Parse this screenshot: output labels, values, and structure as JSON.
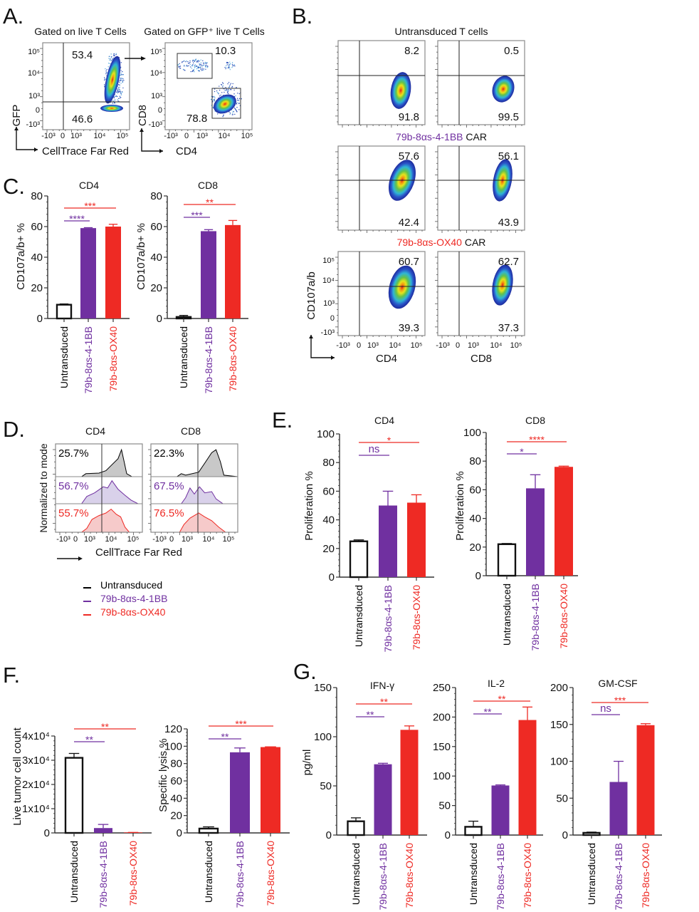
{
  "colors": {
    "untransduced": "#000000",
    "car_41bb": "#7030A0",
    "car_ox40": "#EE2A24",
    "axis": "#333333"
  },
  "panel_labels": {
    "a": "A.",
    "b": "B.",
    "c": "C.",
    "d": "D.",
    "e": "E.",
    "f": "F.",
    "g": "G."
  },
  "flow_ticks": {
    "p5": "10⁵",
    "p4": "10⁴",
    "p3": "10³",
    "zero": "0",
    "n3": "-10³"
  },
  "panel_a": {
    "title_left": "Gated on live T Cells",
    "title_right": "Gated on GFP⁺ live T Cells",
    "plot1": {
      "upper": "53.4",
      "lower": "46.6",
      "xlabel": "CellTrace Far Red",
      "ylabel": "GFP"
    },
    "plot2": {
      "upper_gate": "10.3",
      "lower_gate": "78.8",
      "xlabel": "CD4",
      "ylabel": "CD8"
    }
  },
  "panel_b": {
    "row1_title": "Untransduced T cells",
    "row2_title": {
      "construct": "79b-8αs-4-1BB",
      "suffix": " CAR"
    },
    "row3_title": {
      "construct": "79b-8αs-OX40",
      "suffix": " CAR"
    },
    "plots": [
      {
        "upper": "8.2",
        "lower": "91.8"
      },
      {
        "upper": "0.5",
        "lower": "99.5"
      },
      {
        "upper": "57.6",
        "lower": "42.4"
      },
      {
        "upper": "56.1",
        "lower": "43.9"
      },
      {
        "upper": "60.7",
        "lower": "39.3"
      },
      {
        "upper": "62.7",
        "lower": "37.3"
      }
    ],
    "xlabels": [
      "CD4",
      "CD8"
    ],
    "ylabel": "CD107a/b"
  },
  "panel_d": {
    "titles": [
      "CD4",
      "CD8"
    ],
    "percents": [
      [
        "25.7%",
        "56.7%",
        "55.7%"
      ],
      [
        "22.3%",
        "67.5%",
        "76.5%"
      ]
    ],
    "xlabel": "CellTrace Far Red",
    "ylabel": "Normalized to mode",
    "legend": [
      "Untransduced",
      "79b-8αs-4-1BB",
      "79b-8αs-OX40"
    ]
  },
  "chart_data": [
    {
      "panel": "C",
      "type": "bar",
      "title": "CD4",
      "ylabel": "CD107a/b+ %",
      "categories": [
        "Untransduced",
        "79b-8αs-4-1BB",
        "79b-8αs-OX40"
      ],
      "ylim": [
        0,
        80
      ],
      "yticks": [
        0,
        20,
        40,
        60,
        80
      ],
      "ytick_labels": [
        "0",
        "20",
        "40",
        "60",
        "80"
      ],
      "values": [
        9,
        59,
        60
      ],
      "errors": [
        0.5,
        0.3,
        1.5
      ],
      "significance": [
        {
          "pair": [
            0,
            1
          ],
          "label": "****"
        },
        {
          "pair": [
            0,
            2
          ],
          "label": "***"
        }
      ]
    },
    {
      "panel": "C",
      "type": "bar",
      "title": "CD8",
      "ylabel": "CD107a/b+ %",
      "categories": [
        "Untransduced",
        "79b-8αs-4-1BB",
        "79b-8αs-OX40"
      ],
      "ylim": [
        0,
        80
      ],
      "yticks": [
        0,
        20,
        40,
        60,
        80
      ],
      "ytick_labels": [
        "0",
        "20",
        "40",
        "60",
        "80"
      ],
      "values": [
        1,
        57,
        61
      ],
      "errors": [
        1,
        1,
        3
      ],
      "significance": [
        {
          "pair": [
            0,
            1
          ],
          "label": "***"
        },
        {
          "pair": [
            0,
            2
          ],
          "label": "**"
        }
      ]
    },
    {
      "panel": "E",
      "type": "bar",
      "title": "CD4",
      "ylabel": "Proliferation %",
      "categories": [
        "Untransduced",
        "79b-8αs-4-1BB",
        "79b-8αs-OX40"
      ],
      "ylim": [
        0,
        100
      ],
      "yticks": [
        0,
        20,
        40,
        60,
        80,
        100
      ],
      "ytick_labels": [
        "0",
        "20",
        "40",
        "60",
        "80",
        "100"
      ],
      "values": [
        25,
        50,
        52
      ],
      "errors": [
        1,
        10,
        5.5
      ],
      "significance": [
        {
          "pair": [
            0,
            1
          ],
          "label": "ns"
        },
        {
          "pair": [
            0,
            2
          ],
          "label": "*"
        }
      ]
    },
    {
      "panel": "E",
      "type": "bar",
      "title": "CD8",
      "ylabel": "Proliferation %",
      "categories": [
        "Untransduced",
        "79b-8αs-4-1BB",
        "79b-8αs-OX40"
      ],
      "ylim": [
        0,
        100
      ],
      "yticks": [
        0,
        20,
        40,
        60,
        80,
        100
      ],
      "ytick_labels": [
        "0",
        "20",
        "40",
        "60",
        "80",
        "100"
      ],
      "values": [
        22,
        61,
        76
      ],
      "errors": [
        0.5,
        9.5,
        0.5
      ],
      "significance": [
        {
          "pair": [
            0,
            1
          ],
          "label": "*"
        },
        {
          "pair": [
            0,
            2
          ],
          "label": "****"
        }
      ]
    },
    {
      "panel": "F",
      "type": "bar",
      "title": "",
      "ylabel": "Live tumor cell count",
      "categories": [
        "Untransduced",
        "79b-8αs-4-1BB",
        "79b-8αs-OX40"
      ],
      "ylim": [
        0,
        40000
      ],
      "yticks": [
        0,
        10000,
        20000,
        30000,
        40000
      ],
      "ytick_labels": [
        "0",
        "1x10⁴",
        "2x10⁴",
        "3x10⁴",
        "4x10⁴"
      ],
      "values": [
        31000,
        2000,
        200
      ],
      "errors": [
        1800,
        1500,
        0
      ],
      "significance": [
        {
          "pair": [
            0,
            1
          ],
          "label": "**"
        },
        {
          "pair": [
            0,
            2
          ],
          "label": "**"
        }
      ]
    },
    {
      "panel": "F",
      "type": "bar",
      "title": "",
      "ylabel": "Specific lysis %",
      "categories": [
        "Untransduced",
        "79b-8αs-4-1BB",
        "79b-8αs-OX40"
      ],
      "ylim": [
        0,
        120
      ],
      "yticks": [
        0,
        20,
        40,
        60,
        80,
        100,
        120
      ],
      "ytick_labels": [
        "0",
        "20",
        "40",
        "60",
        "80",
        "100",
        "120"
      ],
      "values": [
        5,
        93,
        99
      ],
      "errors": [
        2,
        5,
        0.3
      ],
      "significance": [
        {
          "pair": [
            0,
            1
          ],
          "label": "**"
        },
        {
          "pair": [
            0,
            2
          ],
          "label": "***"
        }
      ]
    },
    {
      "panel": "G",
      "type": "bar",
      "title": "IFN-γ",
      "ylabel": "pg/ml",
      "categories": [
        "Untransduced",
        "79b-8αs-4-1BB",
        "79b-8αs-OX40"
      ],
      "ylim": [
        0,
        150
      ],
      "yticks": [
        0,
        50,
        100,
        150
      ],
      "ytick_labels": [
        "0",
        "50",
        "100",
        "150"
      ],
      "values": [
        14,
        72,
        107
      ],
      "errors": [
        3.5,
        1,
        4
      ],
      "significance": [
        {
          "pair": [
            0,
            1
          ],
          "label": "**"
        },
        {
          "pair": [
            0,
            2
          ],
          "label": "**"
        }
      ]
    },
    {
      "panel": "G",
      "type": "bar",
      "title": "IL-2",
      "ylabel": "",
      "categories": [
        "Untransduced",
        "79b-8αs-4-1BB",
        "79b-8αs-OX40"
      ],
      "ylim": [
        0,
        250
      ],
      "yticks": [
        0,
        50,
        100,
        150,
        200,
        250
      ],
      "ytick_labels": [
        "0",
        "50",
        "100",
        "150",
        "200",
        "250"
      ],
      "values": [
        14,
        84,
        195
      ],
      "errors": [
        9.5,
        1,
        22
      ],
      "significance": [
        {
          "pair": [
            0,
            1
          ],
          "label": "**"
        },
        {
          "pair": [
            0,
            2
          ],
          "label": "**"
        }
      ]
    },
    {
      "panel": "G",
      "type": "bar",
      "title": "GM-CSF",
      "ylabel": "",
      "categories": [
        "Untransduced",
        "79b-8αs-4-1BB",
        "79b-8αs-OX40"
      ],
      "ylim": [
        0,
        200
      ],
      "yticks": [
        0,
        50,
        100,
        150,
        200
      ],
      "ytick_labels": [
        "0",
        "50",
        "100",
        "150",
        "200"
      ],
      "values": [
        3,
        72,
        149
      ],
      "errors": [
        1,
        28,
        2
      ],
      "significance": [
        {
          "pair": [
            0,
            1
          ],
          "label": "ns"
        },
        {
          "pair": [
            0,
            2
          ],
          "label": "***"
        }
      ]
    }
  ]
}
